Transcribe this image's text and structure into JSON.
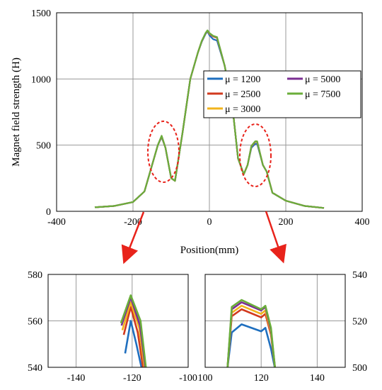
{
  "colors": {
    "mu1200": "#1f6fbf",
    "mu2500": "#d23a1e",
    "mu3000": "#f2b41c",
    "mu5000": "#7b2f93",
    "mu7500": "#6aae3a",
    "annotation": "#e8231b",
    "grid": "#9a9a9a"
  },
  "chart_data": [
    {
      "type": "line",
      "title": "",
      "xlabel": "Position(mm)",
      "ylabel": "Magnet field strength (H)",
      "xlim": [
        -400,
        400
      ],
      "ylim": [
        0,
        1500
      ],
      "xticks": [
        "-400",
        "-200",
        "0",
        "200",
        "400"
      ],
      "yticks": [
        "0",
        "500",
        "1000",
        "1500"
      ],
      "grid": true,
      "legend_position": "upper-right",
      "legend": [
        "μ = 1200",
        "μ = 2500",
        "μ = 3000",
        "μ = 5000",
        "μ = 7500"
      ],
      "series": [
        {
          "name": "μ = 1200",
          "color_key": "mu1200",
          "x": [
            -300,
            -250,
            -200,
            -170,
            -150,
            -135,
            -125,
            -115,
            -100,
            -90,
            -70,
            -50,
            -30,
            -20,
            -10,
            -5,
            0,
            10,
            20,
            40,
            60,
            75,
            90,
            100,
            110,
            120,
            125,
            140,
            150,
            165,
            200,
            250,
            300
          ],
          "y": [
            30,
            40,
            70,
            150,
            350,
            500,
            560,
            480,
            250,
            230,
            600,
            1000,
            1200,
            1280,
            1340,
            1360,
            1330,
            1300,
            1290,
            1100,
            800,
            400,
            280,
            350,
            480,
            510,
            510,
            350,
            300,
            140,
            80,
            40,
            25
          ]
        },
        {
          "name": "μ = 2500",
          "color_key": "mu2500",
          "x": [
            -300,
            -250,
            -200,
            -170,
            -150,
            -135,
            -125,
            -115,
            -100,
            -90,
            -70,
            -50,
            -30,
            -20,
            -10,
            -5,
            0,
            10,
            20,
            40,
            60,
            75,
            90,
            100,
            110,
            120,
            125,
            140,
            150,
            165,
            200,
            250,
            300
          ],
          "y": [
            30,
            40,
            70,
            150,
            350,
            500,
            565,
            480,
            250,
            230,
            600,
            1000,
            1200,
            1285,
            1345,
            1365,
            1340,
            1320,
            1310,
            1100,
            800,
            400,
            280,
            350,
            490,
            525,
            525,
            350,
            300,
            140,
            80,
            40,
            25
          ]
        },
        {
          "name": "μ = 3000",
          "color_key": "mu3000",
          "x": [
            -300,
            -250,
            -200,
            -170,
            -150,
            -135,
            -125,
            -115,
            -100,
            -90,
            -70,
            -50,
            -30,
            -20,
            -10,
            -5,
            0,
            10,
            20,
            40,
            60,
            75,
            90,
            100,
            110,
            120,
            125,
            140,
            150,
            165,
            200,
            250,
            300
          ],
          "y": [
            30,
            40,
            70,
            150,
            350,
            500,
            567,
            480,
            250,
            230,
            600,
            1000,
            1200,
            1285,
            1345,
            1365,
            1342,
            1322,
            1312,
            1100,
            800,
            400,
            280,
            350,
            492,
            526,
            526,
            350,
            300,
            140,
            80,
            40,
            25
          ]
        },
        {
          "name": "μ = 5000",
          "color_key": "mu5000",
          "x": [
            -300,
            -250,
            -200,
            -170,
            -150,
            -135,
            -125,
            -115,
            -100,
            -90,
            -70,
            -50,
            -30,
            -20,
            -10,
            -5,
            0,
            10,
            20,
            40,
            60,
            75,
            90,
            100,
            110,
            120,
            125,
            140,
            150,
            165,
            200,
            250,
            300
          ],
          "y": [
            30,
            40,
            70,
            150,
            350,
            500,
            569,
            480,
            250,
            230,
            600,
            1000,
            1200,
            1286,
            1346,
            1366,
            1345,
            1324,
            1314,
            1100,
            800,
            400,
            280,
            350,
            494,
            528,
            528,
            350,
            300,
            140,
            80,
            40,
            25
          ]
        },
        {
          "name": "μ = 7500",
          "color_key": "mu7500",
          "x": [
            -300,
            -250,
            -200,
            -170,
            -150,
            -135,
            -125,
            -115,
            -100,
            -90,
            -70,
            -50,
            -30,
            -20,
            -10,
            -5,
            0,
            10,
            20,
            40,
            60,
            75,
            90,
            100,
            110,
            120,
            125,
            140,
            150,
            165,
            200,
            250,
            300
          ],
          "y": [
            30,
            40,
            70,
            150,
            350,
            500,
            571,
            480,
            250,
            230,
            600,
            1000,
            1200,
            1287,
            1347,
            1367,
            1347,
            1326,
            1316,
            1100,
            800,
            400,
            280,
            350,
            495,
            529,
            529,
            350,
            300,
            140,
            80,
            40,
            25
          ]
        }
      ]
    },
    {
      "type": "line",
      "title": "",
      "xlabel": "",
      "ylabel": "",
      "xlim": [
        -150,
        -100
      ],
      "ylim": [
        540,
        580
      ],
      "xticks": [
        "-140",
        "-120",
        "-100"
      ],
      "yticks": [
        "540",
        "560",
        "580"
      ],
      "grid": true,
      "series": [
        {
          "name": "μ = 1200",
          "color_key": "mu1200",
          "x": [
            -122.5,
            -120.5,
            -118.5,
            -116.5
          ],
          "y": [
            546,
            560,
            550,
            539
          ]
        },
        {
          "name": "μ = 2500",
          "color_key": "mu2500",
          "x": [
            -123.0,
            -120.5,
            -118.0,
            -116.0
          ],
          "y": [
            554,
            566,
            555,
            539
          ]
        },
        {
          "name": "μ = 3000",
          "color_key": "mu3000",
          "x": [
            -123.5,
            -120.5,
            -117.5,
            -115.5
          ],
          "y": [
            556,
            568,
            557,
            539
          ]
        },
        {
          "name": "μ = 5000",
          "color_key": "mu5000",
          "x": [
            -123.8,
            -120.5,
            -117.2,
            -115.2
          ],
          "y": [
            558,
            570,
            558,
            539
          ]
        },
        {
          "name": "μ = 7500",
          "color_key": "mu7500",
          "x": [
            -124.0,
            -120.5,
            -117.0,
            -115.0
          ],
          "y": [
            559,
            571,
            560,
            539
          ]
        }
      ]
    },
    {
      "type": "line",
      "title": "",
      "xlabel": "",
      "ylabel": "",
      "xlim": [
        100,
        150
      ],
      "ylim": [
        500,
        540
      ],
      "xticks": [
        "100",
        "120",
        "140"
      ],
      "yticks": [
        "500",
        "520",
        "540"
      ],
      "yaxis_side": "right",
      "grid": true,
      "series": [
        {
          "name": "μ = 1200",
          "color_key": "mu1200",
          "x": [
            108,
            109.5,
            113,
            120,
            121.5,
            123.5,
            125
          ],
          "y": [
            500,
            515,
            518.5,
            515.5,
            517,
            508,
            499
          ]
        },
        {
          "name": "μ = 2500",
          "color_key": "mu2500",
          "x": [
            108,
            109.5,
            113,
            120,
            121.5,
            123.5,
            125
          ],
          "y": [
            500,
            522,
            525,
            521.5,
            523,
            514,
            499
          ]
        },
        {
          "name": "μ = 3000",
          "color_key": "mu3000",
          "x": [
            108,
            109.5,
            113,
            120,
            121.5,
            123.5,
            125
          ],
          "y": [
            500,
            523.5,
            526.5,
            523,
            524.5,
            515,
            499
          ]
        },
        {
          "name": "μ = 5000",
          "color_key": "mu5000",
          "x": [
            108,
            109.5,
            113,
            120,
            121.5,
            123.5,
            125
          ],
          "y": [
            500,
            525,
            528,
            524.5,
            526,
            516,
            499
          ]
        },
        {
          "name": "μ = 7500",
          "color_key": "mu7500",
          "x": [
            108,
            109.5,
            113,
            120,
            121.5,
            123.5,
            125
          ],
          "y": [
            500,
            526,
            529,
            525,
            526.5,
            517,
            499
          ]
        }
      ]
    }
  ]
}
